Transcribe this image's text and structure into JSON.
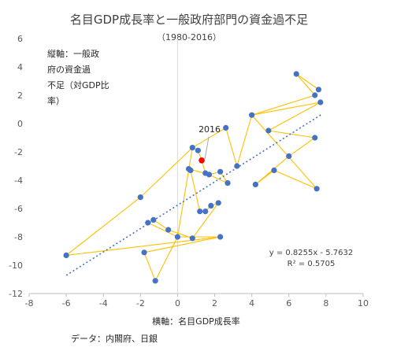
{
  "chart_data": {
    "type": "scatter",
    "title": "名目GDP成長率と一般政府部門の資金過不足",
    "subtitle": "（1980-2016）",
    "ylabel_lines": [
      "縦軸：一般政",
      "府の資金過",
      "不足（対GDP比",
      "率）"
    ],
    "xlabel": "横軸：名目GDP成長率",
    "source": "データ：内閣府、日銀",
    "xlim": [
      -8,
      10
    ],
    "ylim": [
      -12,
      6
    ],
    "x_ticks": [
      -8,
      -6,
      -4,
      -2,
      0,
      2,
      4,
      6,
      8,
      10
    ],
    "y_ticks": [
      -12,
      -10,
      -8,
      -6,
      -4,
      -2,
      0,
      2,
      4,
      6
    ],
    "grid": false,
    "colors": {
      "points": "#4472c4",
      "path": "#ffc000",
      "trend": "#4472c4",
      "highlight": "#ff0000"
    },
    "points": [
      {
        "x": 7.6,
        "y": 2.4
      },
      {
        "x": 7.4,
        "y": 2.0
      },
      {
        "x": 7.7,
        "y": 1.5
      },
      {
        "x": 6.4,
        "y": 3.5
      },
      {
        "x": 4.0,
        "y": 0.6
      },
      {
        "x": 4.9,
        "y": -0.5
      },
      {
        "x": 7.4,
        "y": -1.0
      },
      {
        "x": 6.0,
        "y": -2.3
      },
      {
        "x": 5.2,
        "y": -3.3
      },
      {
        "x": 4.2,
        "y": -4.3
      },
      {
        "x": 7.5,
        "y": -4.6
      },
      {
        "x": 3.2,
        "y": -3.0
      },
      {
        "x": 2.7,
        "y": -4.2
      },
      {
        "x": 2.6,
        "y": -0.3
      },
      {
        "x": 0.8,
        "y": -1.7
      },
      {
        "x": 1.1,
        "y": -1.9
      },
      {
        "x": 0.7,
        "y": -3.3
      },
      {
        "x": 0.6,
        "y": -3.2
      },
      {
        "x": 1.7,
        "y": -3.6
      },
      {
        "x": 1.5,
        "y": -3.5
      },
      {
        "x": 2.3,
        "y": -3.4
      },
      {
        "x": 1.8,
        "y": -5.8
      },
      {
        "x": 2.2,
        "y": -5.6
      },
      {
        "x": 1.5,
        "y": -6.2
      },
      {
        "x": 1.2,
        "y": -6.2
      },
      {
        "x": -2.0,
        "y": -5.2
      },
      {
        "x": -1.3,
        "y": -6.8
      },
      {
        "x": -1.6,
        "y": -7.0
      },
      {
        "x": -0.5,
        "y": -7.5
      },
      {
        "x": 0.0,
        "y": -8.0
      },
      {
        "x": 0.8,
        "y": -8.1
      },
      {
        "x": 2.3,
        "y": -8.0
      },
      {
        "x": -1.8,
        "y": -9.1
      },
      {
        "x": -1.2,
        "y": -11.1
      },
      {
        "x": -6.0,
        "y": -9.3
      }
    ],
    "path_order": [
      [
        7.6,
        2.4
      ],
      [
        6.4,
        3.5
      ],
      [
        7.4,
        2.0
      ],
      [
        4.0,
        0.6
      ],
      [
        7.7,
        1.5
      ],
      [
        4.9,
        -0.5
      ],
      [
        7.4,
        -1.0
      ],
      [
        6.0,
        -2.3
      ],
      [
        4.2,
        -4.3
      ],
      [
        5.2,
        -3.3
      ],
      [
        7.5,
        -4.6
      ],
      [
        4.0,
        0.6
      ],
      [
        3.2,
        -3.0
      ],
      [
        2.6,
        -0.3
      ],
      [
        0.8,
        -1.7
      ],
      [
        1.1,
        -1.9
      ],
      [
        1.3,
        -2.6
      ],
      [
        1.5,
        -3.5
      ],
      [
        2.7,
        -4.2
      ],
      [
        2.3,
        -3.4
      ],
      [
        1.7,
        -3.6
      ],
      [
        0.6,
        -3.2
      ],
      [
        0.7,
        -3.3
      ],
      [
        1.2,
        -6.2
      ],
      [
        1.5,
        -6.2
      ],
      [
        1.8,
        -5.8
      ],
      [
        2.2,
        -5.6
      ],
      [
        0.8,
        -8.1
      ],
      [
        -0.5,
        -7.5
      ],
      [
        -1.3,
        -6.8
      ],
      [
        -1.6,
        -7.0
      ],
      [
        0.0,
        -8.0
      ],
      [
        2.3,
        -8.0
      ],
      [
        -1.8,
        -9.1
      ],
      [
        -1.2,
        -11.1
      ],
      [
        0.0,
        -8.0
      ],
      [
        0.8,
        -1.7
      ],
      [
        -2.0,
        -5.2
      ],
      [
        -6.0,
        -9.3
      ],
      [
        2.3,
        -8.0
      ]
    ],
    "highlight": {
      "label": "2016",
      "x": 1.3,
      "y": -2.6
    },
    "trendline": {
      "slope": 0.8255,
      "intercept": -5.7632,
      "x_range": [
        -6.0,
        7.8
      ],
      "equation": "y = 0.8255x - 5.7632",
      "r2": "R² = 0.5705"
    }
  }
}
